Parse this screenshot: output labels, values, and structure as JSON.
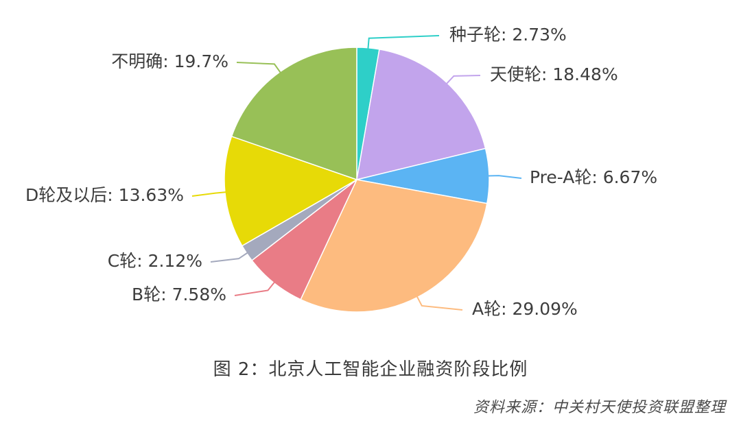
{
  "chart_data": {
    "type": "pie",
    "slices": [
      {
        "label": "种子轮",
        "value": 2.73,
        "display": "种子轮: 2.73%",
        "color": "#2ecfc8"
      },
      {
        "label": "天使轮",
        "value": 18.48,
        "display": "天使轮: 18.48%",
        "color": "#c2a4ec"
      },
      {
        "label": "Pre-A轮",
        "value": 6.67,
        "display": "Pre-A轮: 6.67%",
        "color": "#5bb4f3"
      },
      {
        "label": "A轮",
        "value": 29.09,
        "display": "A轮: 29.09%",
        "color": "#fdbb7f"
      },
      {
        "label": "B轮",
        "value": 7.58,
        "display": "B轮: 7.58%",
        "color": "#e97c86"
      },
      {
        "label": "C轮",
        "value": 2.12,
        "display": "C轮: 2.12%",
        "color": "#a4a9bd"
      },
      {
        "label": "D轮及以后",
        "value": 13.63,
        "display": "D轮及以后: 13.63%",
        "color": "#e7da07"
      },
      {
        "label": "不明确",
        "value": 19.7,
        "display": "不明确: 19.7%",
        "color": "#98c057"
      }
    ]
  },
  "caption": "图 2：北京人工智能企业融资阶段比例",
  "source": "资料来源：中关村天使投资联盟整理"
}
